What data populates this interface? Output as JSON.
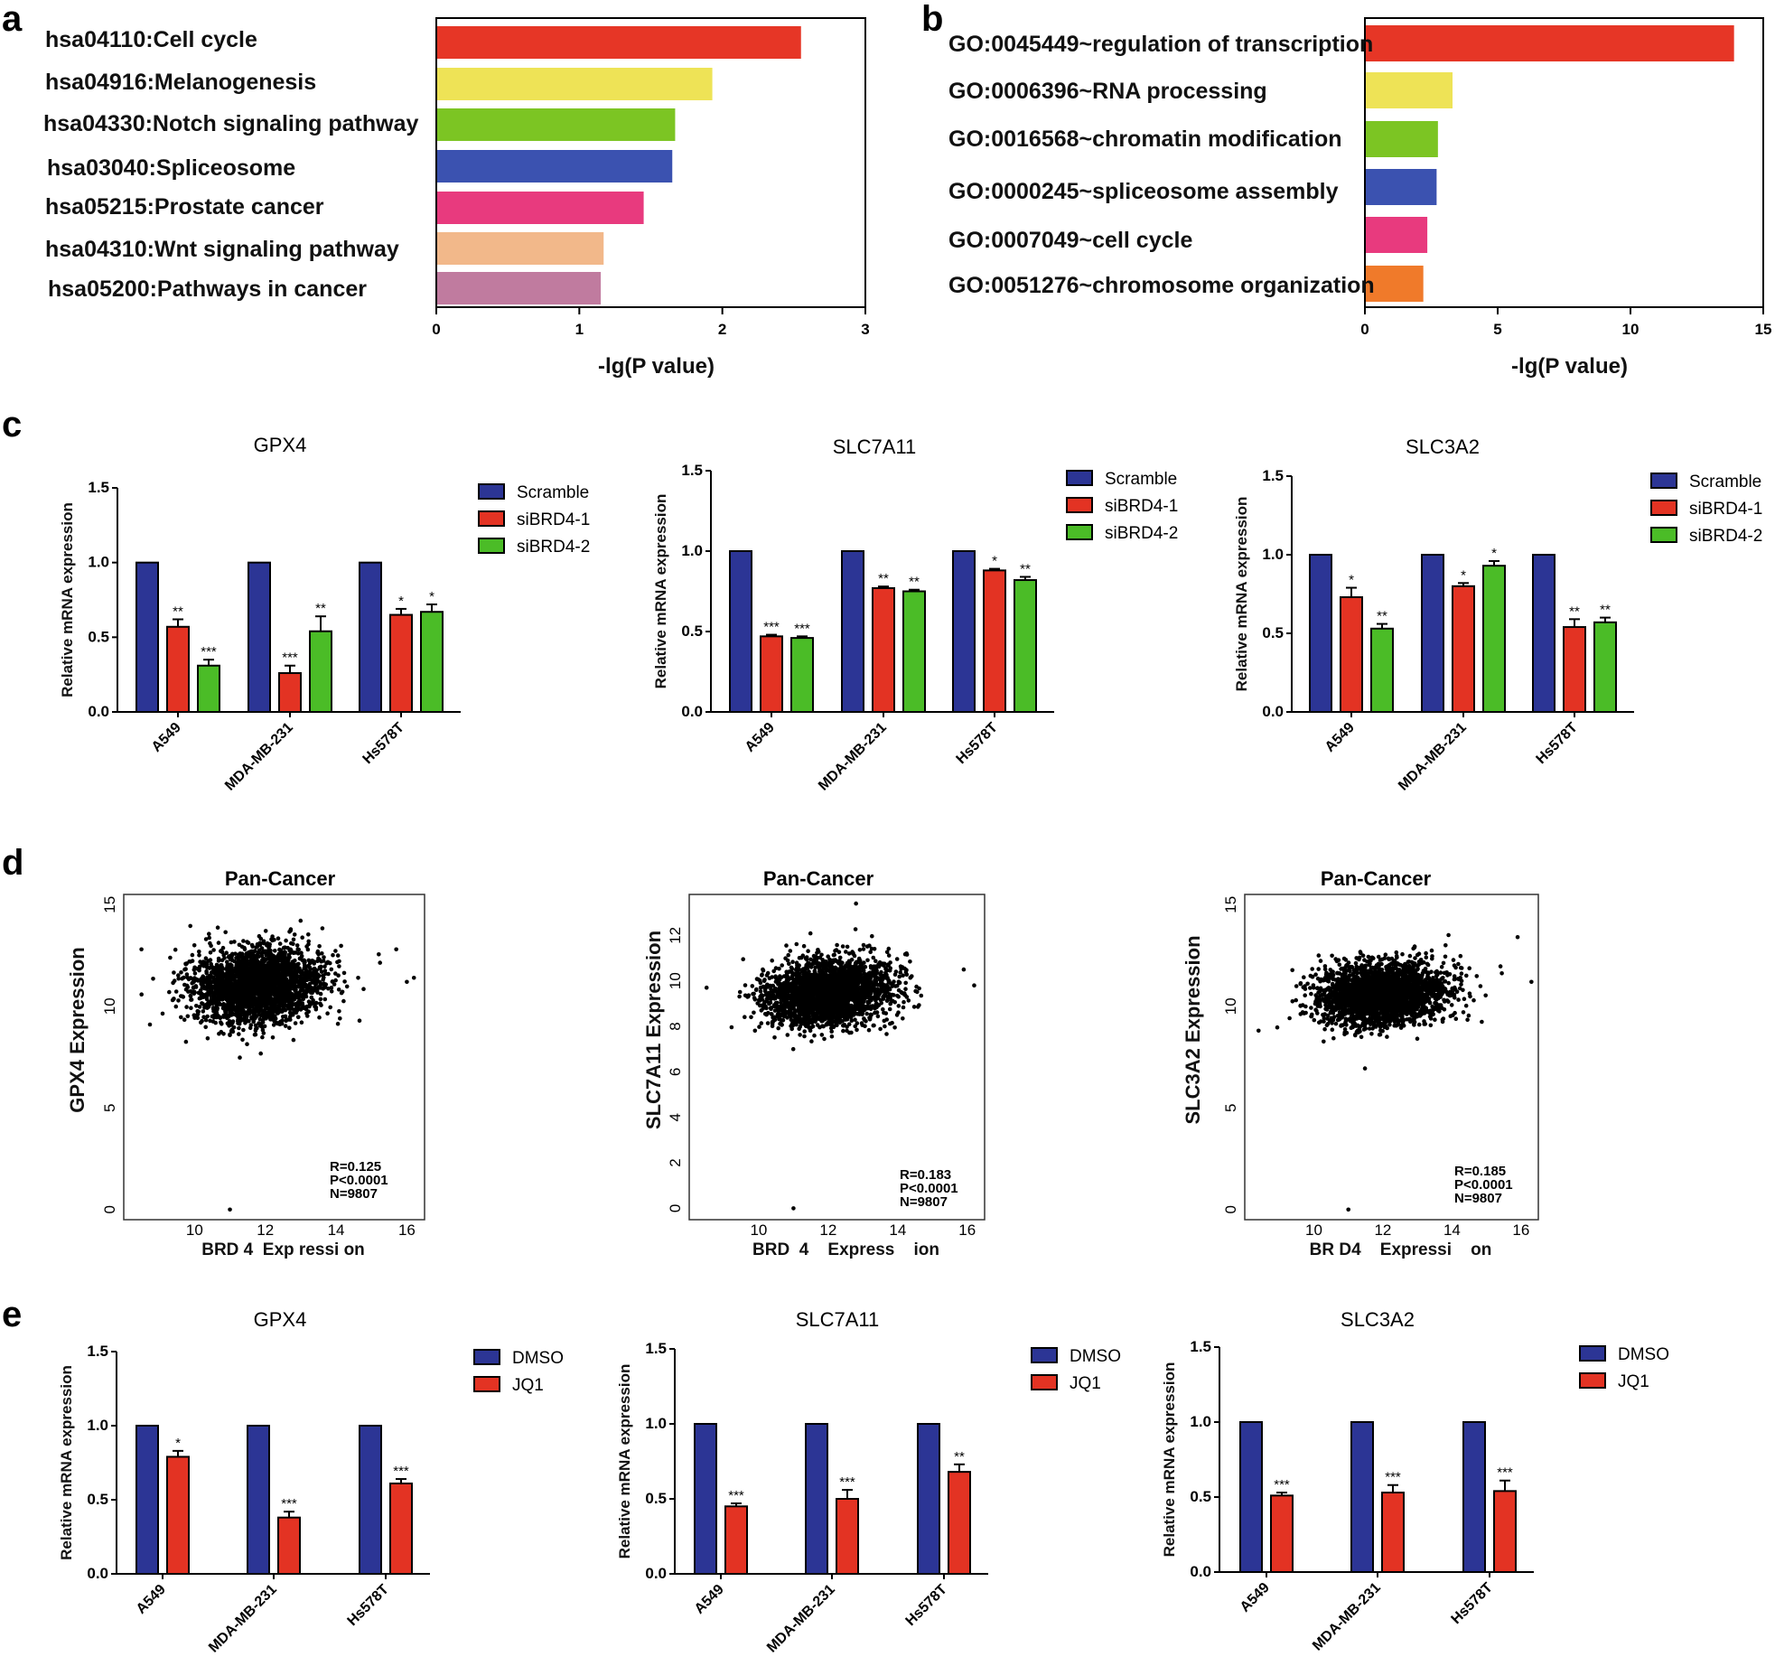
{
  "panel_letters": [
    "a",
    "b",
    "c",
    "d",
    "e"
  ],
  "chart_data": [
    {
      "id": "a",
      "type": "bar",
      "orientation": "horizontal",
      "categories": [
        "hsa04110:Cell cycle",
        "hsa04916:Melanogenesis",
        "hsa04330:Notch signaling pathway",
        "hsa03040:Spliceosome",
        "hsa05215:Prostate cancer",
        "hsa04310:Wnt signaling pathway",
        "hsa05200:Pathways in cancer"
      ],
      "values": [
        2.55,
        1.93,
        1.67,
        1.65,
        1.45,
        1.17,
        1.15
      ],
      "colors": [
        "#e63626",
        "#eee356",
        "#7cc523",
        "#3b52b0",
        "#e83a7e",
        "#f2b88a",
        "#c07b9f"
      ],
      "xlabel": "-lg(P value)",
      "xlim": [
        0,
        3
      ],
      "xticks": [
        0,
        1,
        2,
        3
      ]
    },
    {
      "id": "b",
      "type": "bar",
      "orientation": "horizontal",
      "categories": [
        "GO:0045449~regulation of transcription",
        "GO:0006396~RNA processing",
        "GO:0016568~chromatin modification",
        "GO:0000245~spliceosome assembly",
        "GO:0007049~cell cycle",
        "GO:0051276~chromosome organization"
      ],
      "values": [
        13.9,
        3.3,
        2.75,
        2.7,
        2.35,
        2.2
      ],
      "colors": [
        "#e63626",
        "#eee356",
        "#7cc523",
        "#3b52b0",
        "#e83a7e",
        "#f07a2a"
      ],
      "xlabel": "-lg(P value)",
      "xlim": [
        0,
        15
      ],
      "xticks": [
        0,
        5,
        10,
        15
      ]
    },
    {
      "id": "c1",
      "type": "bar",
      "title": "GPX4",
      "ylabel": "Relative mRNA expression",
      "ylim": [
        0,
        1.5
      ],
      "yticks": [
        "0.0",
        "0.5",
        "1.0",
        "1.5"
      ],
      "categories": [
        "A549",
        "MDA-MB-231",
        "Hs578T"
      ],
      "series": [
        {
          "name": "Scramble",
          "color": "#2c3595",
          "values": [
            1.0,
            1.0,
            1.0
          ],
          "errors": [
            0,
            0,
            0
          ],
          "sig": [
            "",
            "",
            ""
          ]
        },
        {
          "name": "siBRD4-1",
          "color": "#e33323",
          "values": [
            0.57,
            0.26,
            0.65
          ],
          "errors": [
            0.05,
            0.05,
            0.04
          ],
          "sig": [
            "**",
            "***",
            "*"
          ]
        },
        {
          "name": "siBRD4-2",
          "color": "#4bbc27",
          "values": [
            0.31,
            0.54,
            0.67
          ],
          "errors": [
            0.04,
            0.1,
            0.05
          ],
          "sig": [
            "***",
            "**",
            "*"
          ]
        }
      ]
    },
    {
      "id": "c2",
      "type": "bar",
      "title": "SLC7A11",
      "ylabel": "Relative mRNA expression",
      "ylim": [
        0,
        1.5
      ],
      "yticks": [
        "0.0",
        "0.5",
        "1.0",
        "1.5"
      ],
      "categories": [
        "A549",
        "MDA-MB-231",
        "Hs578T"
      ],
      "series": [
        {
          "name": "Scramble",
          "color": "#2c3595",
          "values": [
            1.0,
            1.0,
            1.0
          ],
          "errors": [
            0,
            0,
            0
          ],
          "sig": [
            "",
            "",
            ""
          ]
        },
        {
          "name": "siBRD4-1",
          "color": "#e33323",
          "values": [
            0.47,
            0.77,
            0.88
          ],
          "errors": [
            0.01,
            0.01,
            0.01
          ],
          "sig": [
            "***",
            "**",
            "*"
          ]
        },
        {
          "name": "siBRD4-2",
          "color": "#4bbc27",
          "values": [
            0.46,
            0.75,
            0.82
          ],
          "errors": [
            0.01,
            0.01,
            0.02
          ],
          "sig": [
            "***",
            "**",
            "**"
          ]
        }
      ]
    },
    {
      "id": "c3",
      "type": "bar",
      "title": "SLC3A2",
      "ylabel": "Relative mRNA expression",
      "ylim": [
        0,
        1.5
      ],
      "yticks": [
        "0.0",
        "0.5",
        "1.0",
        "1.5"
      ],
      "categories": [
        "A549",
        "MDA-MB-231",
        "Hs578T"
      ],
      "series": [
        {
          "name": "Scramble",
          "color": "#2c3595",
          "values": [
            1.0,
            1.0,
            1.0
          ],
          "errors": [
            0,
            0,
            0
          ],
          "sig": [
            "",
            "",
            ""
          ]
        },
        {
          "name": "siBRD4-1",
          "color": "#e33323",
          "values": [
            0.73,
            0.8,
            0.54
          ],
          "errors": [
            0.06,
            0.02,
            0.05
          ],
          "sig": [
            "*",
            "*",
            "**"
          ]
        },
        {
          "name": "siBRD4-2",
          "color": "#4bbc27",
          "values": [
            0.53,
            0.93,
            0.57
          ],
          "errors": [
            0.03,
            0.03,
            0.03
          ],
          "sig": [
            "**",
            "*",
            "**"
          ]
        }
      ]
    },
    {
      "id": "d1",
      "type": "scatter",
      "title": "Pan-Cancer",
      "xlabel": "BRD 4  Exp ressi on",
      "ylabel": "GPX4 Expression",
      "xlim": [
        8,
        16.5
      ],
      "ylim": [
        -0.5,
        15.5
      ],
      "xticks": [
        10,
        12,
        14,
        16
      ],
      "yticks": [
        0,
        5,
        10,
        15
      ],
      "center": [
        11.8,
        11
      ],
      "spread": [
        0.9,
        0.9
      ],
      "n_points": 9807,
      "outliers": [
        [
          11,
          0
        ],
        [
          8.5,
          12.8
        ],
        [
          16.2,
          11.4
        ],
        [
          15.7,
          12.8
        ],
        [
          16.0,
          11.2
        ]
      ],
      "stats": [
        "R=0.125",
        "P<0.0001",
        "N=9807"
      ]
    },
    {
      "id": "d2",
      "type": "scatter",
      "title": "Pan-Cancer",
      "xlabel": "BRD  4    Express    ion",
      "ylabel": "SLC7A11 Expression",
      "xlim": [
        8,
        16.5
      ],
      "ylim": [
        -0.5,
        13.8
      ],
      "xticks": [
        10,
        12,
        14,
        16
      ],
      "yticks": [
        0,
        2,
        4,
        6,
        8,
        10,
        12
      ],
      "center": [
        12,
        9.5
      ],
      "spread": [
        0.9,
        0.7
      ],
      "n_points": 9807,
      "outliers": [
        [
          11,
          0
        ],
        [
          8.5,
          9.7
        ],
        [
          16.2,
          9.8
        ],
        [
          15.9,
          10.5
        ],
        [
          12.8,
          13.4
        ]
      ],
      "stats": [
        "R=0.183",
        "P<0.0001",
        "N=9807"
      ]
    },
    {
      "id": "d3",
      "type": "scatter",
      "title": "Pan-Cancer",
      "xlabel": "BR D4    Expressi    on",
      "ylabel": "SLC3A2 Expression",
      "xlim": [
        8,
        16.5
      ],
      "ylim": [
        -0.5,
        15.5
      ],
      "xticks": [
        10,
        12,
        14,
        16
      ],
      "yticks": [
        0,
        5,
        10,
        15
      ],
      "center": [
        12,
        10.6
      ],
      "spread": [
        0.9,
        0.75
      ],
      "n_points": 9807,
      "outliers": [
        [
          11,
          0
        ],
        [
          8.4,
          8.8
        ],
        [
          16.3,
          11.2
        ],
        [
          15.9,
          13.4
        ],
        [
          13.9,
          13.5
        ]
      ],
      "stats": [
        "R=0.185",
        "P<0.0001",
        "N=9807"
      ]
    },
    {
      "id": "e1",
      "type": "bar",
      "title": "GPX4",
      "ylabel": "Relative mRNA expression",
      "ylim": [
        0,
        1.5
      ],
      "yticks": [
        "0.0",
        "0.5",
        "1.0",
        "1.5"
      ],
      "categories": [
        "A549",
        "MDA-MB-231",
        "Hs578T"
      ],
      "series": [
        {
          "name": "DMSO",
          "color": "#2c3595",
          "values": [
            1.0,
            1.0,
            1.0
          ],
          "errors": [
            0,
            0,
            0
          ],
          "sig": [
            "",
            "",
            ""
          ]
        },
        {
          "name": "JQ1",
          "color": "#e33323",
          "values": [
            0.79,
            0.38,
            0.61
          ],
          "errors": [
            0.04,
            0.04,
            0.03
          ],
          "sig": [
            "*",
            "***",
            "***"
          ]
        }
      ]
    },
    {
      "id": "e2",
      "type": "bar",
      "title": "SLC7A11",
      "ylabel": "Relative mRNA expression",
      "ylim": [
        0,
        1.5
      ],
      "yticks": [
        "0.0",
        "0.5",
        "1.0",
        "1.5"
      ],
      "categories": [
        "A549",
        "MDA-MB-231",
        "Hs578T"
      ],
      "series": [
        {
          "name": "DMSO",
          "color": "#2c3595",
          "values": [
            1.0,
            1.0,
            1.0
          ],
          "errors": [
            0,
            0,
            0
          ],
          "sig": [
            "",
            "",
            ""
          ]
        },
        {
          "name": "JQ1",
          "color": "#e33323",
          "values": [
            0.45,
            0.5,
            0.68
          ],
          "errors": [
            0.02,
            0.06,
            0.05
          ],
          "sig": [
            "***",
            "***",
            "**"
          ]
        }
      ]
    },
    {
      "id": "e3",
      "type": "bar",
      "title": "SLC3A2",
      "ylabel": "Relative mRNA expression",
      "ylim": [
        0,
        1.5
      ],
      "yticks": [
        "0.0",
        "0.5",
        "1.0",
        "1.5"
      ],
      "categories": [
        "A549",
        "MDA-MB-231",
        "Hs578T"
      ],
      "series": [
        {
          "name": "DMSO",
          "color": "#2c3595",
          "values": [
            1.0,
            1.0,
            1.0
          ],
          "errors": [
            0,
            0,
            0
          ],
          "sig": [
            "",
            "",
            ""
          ]
        },
        {
          "name": "JQ1",
          "color": "#e33323",
          "values": [
            0.51,
            0.53,
            0.54
          ],
          "errors": [
            0.02,
            0.05,
            0.07
          ],
          "sig": [
            "***",
            "***",
            "***"
          ]
        }
      ]
    }
  ]
}
